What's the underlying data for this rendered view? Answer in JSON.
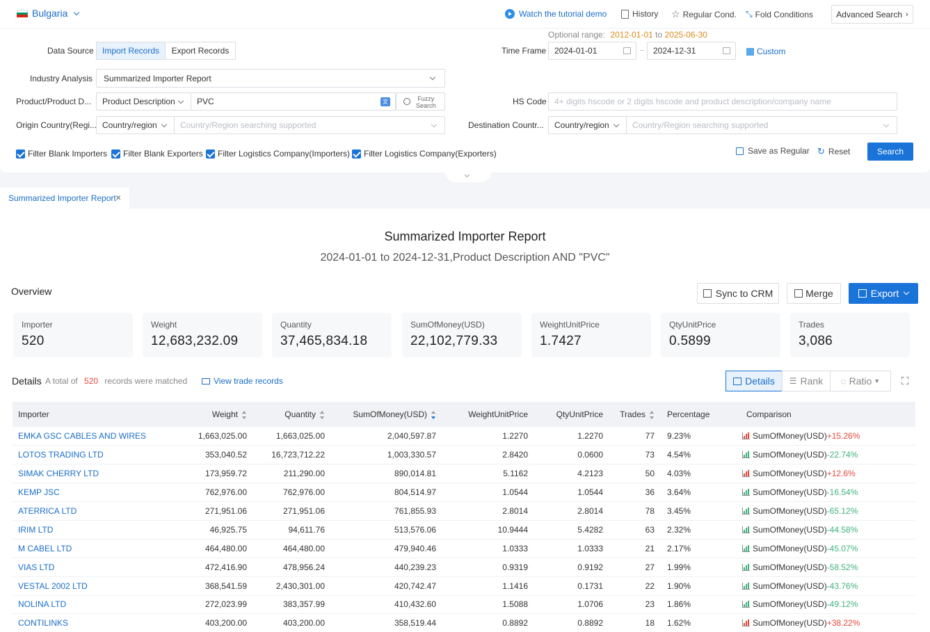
{
  "topbar": {
    "country": "Bulgaria",
    "tutorial": "Watch the tutorial demo",
    "history": "History",
    "regular_cond": "Regular Cond.",
    "fold_conditions": "Fold Conditions",
    "advanced_search": "Advanced Search"
  },
  "form": {
    "optional_range_label": "Optional range:",
    "optional_range_start": "2012-01-01",
    "optional_range_to": "to",
    "optional_range_end": "2025-06-30",
    "data_source_label": "Data Source",
    "import_records": "Import Records",
    "export_records": "Export Records",
    "time_frame_label": "Time Frame",
    "date_start": "2024-01-01",
    "date_end": "2024-12-31",
    "custom": "Custom",
    "industry_label": "Industry Analysis",
    "industry_value": "Summarized Importer Report",
    "product_label": "Product/Product D...",
    "product_type": "Product Description",
    "product_value": "PVC",
    "fuzzy_1": "Fuzzy",
    "fuzzy_2": "Search",
    "hs_label": "HS Code",
    "hs_placeholder": "4+ digits hscode or 2 digits hscode and product description/company name",
    "origin_label": "Origin Country(Regi...",
    "origin_type": "Country/region",
    "origin_placeholder": "Country/Region searching supported",
    "dest_label": "Destination Countr...",
    "dest_type": "Country/region",
    "dest_placeholder": "Country/Region searching supported",
    "filter_1": "Filter Blank Importers",
    "filter_2": "Filter Blank Exporters",
    "filter_3": "Filter Logistics Company(Importers)",
    "filter_4": "Filter Logistics Company(Exporters)",
    "save_regular": "Save as Regular",
    "reset": "Reset",
    "search": "Search"
  },
  "tab": {
    "label": "Summarized Importer Report"
  },
  "report": {
    "title": "Summarized Importer Report",
    "subtitle": "2024-01-01 to 2024-12-31,Product Description AND \"PVC\"",
    "overview": "Overview",
    "sync_crm": "Sync to CRM",
    "merge": "Merge",
    "export": "Export"
  },
  "stats": [
    {
      "label": "Importer",
      "value": "520"
    },
    {
      "label": "Weight",
      "value": "12,683,232.09"
    },
    {
      "label": "Quantity",
      "value": "37,465,834.18"
    },
    {
      "label": "SumOfMoney(USD)",
      "value": "22,102,779.33"
    },
    {
      "label": "WeightUnitPrice",
      "value": "1.7427"
    },
    {
      "label": "QtyUnitPrice",
      "value": "0.5899"
    },
    {
      "label": "Trades",
      "value": "3,086"
    }
  ],
  "details": {
    "title": "Details",
    "total_prefix": "A total of",
    "total_count": "520",
    "total_suffix": "records were matched",
    "view_trade": "View trade records",
    "view_details": "Details",
    "view_rank": "Rank",
    "view_ratio": "Ratio"
  },
  "table": {
    "headers": [
      "Importer",
      "Weight",
      "Quantity",
      "SumOfMoney(USD)",
      "WeightUnitPrice",
      "QtyUnitPrice",
      "Trades",
      "Percentage",
      "Comparison"
    ],
    "rows": [
      {
        "importer": "EMKA GSC CABLES AND WIRES",
        "weight": "1,663,025.00",
        "quantity": "1,663,025.00",
        "money": "2,040,597.87",
        "wup": "1.2270",
        "qup": "1.2270",
        "trades": "77",
        "pct": "9.23%",
        "cmp_label": "SumOfMoney(USD)",
        "cmp": "+15.26%",
        "dir": "up"
      },
      {
        "importer": "LOTOS TRADING LTD",
        "weight": "353,040.52",
        "quantity": "16,723,712.22",
        "money": "1,003,330.57",
        "wup": "2.8420",
        "qup": "0.0600",
        "trades": "73",
        "pct": "4.54%",
        "cmp_label": "SumOfMoney(USD)",
        "cmp": "-22.74%",
        "dir": "down"
      },
      {
        "importer": "SIMAK CHERRY LTD",
        "weight": "173,959.72",
        "quantity": "211,290.00",
        "money": "890,014.81",
        "wup": "5.1162",
        "qup": "4.2123",
        "trades": "50",
        "pct": "4.03%",
        "cmp_label": "SumOfMoney(USD)",
        "cmp": "+12.6%",
        "dir": "up"
      },
      {
        "importer": "KEMP JSC",
        "weight": "762,976.00",
        "quantity": "762,976.00",
        "money": "804,514.97",
        "wup": "1.0544",
        "qup": "1.0544",
        "trades": "36",
        "pct": "3.64%",
        "cmp_label": "SumOfMoney(USD)",
        "cmp": "-16.54%",
        "dir": "down"
      },
      {
        "importer": "ATERRICA LTD",
        "weight": "271,951.06",
        "quantity": "271,951.06",
        "money": "761,855.93",
        "wup": "2.8014",
        "qup": "2.8014",
        "trades": "78",
        "pct": "3.45%",
        "cmp_label": "SumOfMoney(USD)",
        "cmp": "-65.12%",
        "dir": "down"
      },
      {
        "importer": "IRIM LTD",
        "weight": "46,925.75",
        "quantity": "94,611.76",
        "money": "513,576.06",
        "wup": "10.9444",
        "qup": "5.4282",
        "trades": "63",
        "pct": "2.32%",
        "cmp_label": "SumOfMoney(USD)",
        "cmp": "-44.58%",
        "dir": "down"
      },
      {
        "importer": "M CABEL LTD",
        "weight": "464,480.00",
        "quantity": "464,480.00",
        "money": "479,940.46",
        "wup": "1.0333",
        "qup": "1.0333",
        "trades": "21",
        "pct": "2.17%",
        "cmp_label": "SumOfMoney(USD)",
        "cmp": "-45.07%",
        "dir": "down"
      },
      {
        "importer": "VIAS LTD",
        "weight": "472,416.90",
        "quantity": "478,956.24",
        "money": "440,239.23",
        "wup": "0.9319",
        "qup": "0.9192",
        "trades": "27",
        "pct": "1.99%",
        "cmp_label": "SumOfMoney(USD)",
        "cmp": "-58.52%",
        "dir": "down"
      },
      {
        "importer": "VESTAL 2002 LTD",
        "weight": "368,541.59",
        "quantity": "2,430,301.00",
        "money": "420,742.47",
        "wup": "1.1416",
        "qup": "0.1731",
        "trades": "22",
        "pct": "1.90%",
        "cmp_label": "SumOfMoney(USD)",
        "cmp": "-43.76%",
        "dir": "down"
      },
      {
        "importer": "NOLINA LTD",
        "weight": "272,023.99",
        "quantity": "383,357.99",
        "money": "410,432.60",
        "wup": "1.5088",
        "qup": "1.0706",
        "trades": "23",
        "pct": "1.86%",
        "cmp_label": "SumOfMoney(USD)",
        "cmp": "-49.12%",
        "dir": "down"
      },
      {
        "importer": "CONTILINKS",
        "weight": "403,200.00",
        "quantity": "403,200.00",
        "money": "358,519.44",
        "wup": "0.8892",
        "qup": "0.8892",
        "trades": "18",
        "pct": "1.62%",
        "cmp_label": "SumOfMoney(USD)",
        "cmp": "+38.22%",
        "dir": "up"
      }
    ]
  },
  "colors": {
    "accent": "#1a73d9",
    "up": "#e8483b",
    "down": "#3fb27f",
    "range": "#d98c1a",
    "count": "#e8483b"
  }
}
